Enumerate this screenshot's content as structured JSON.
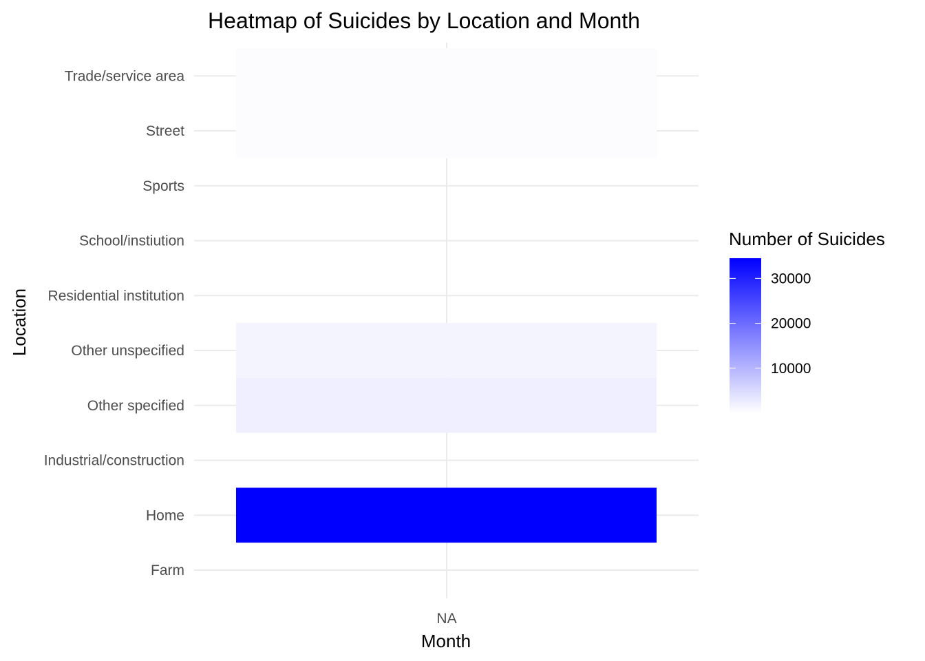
{
  "chart_data": {
    "type": "heatmap",
    "title": "Heatmap of Suicides by Location and Month",
    "xlabel": "Month",
    "ylabel": "Location",
    "x_categories": [
      "NA"
    ],
    "y_categories": [
      "Farm",
      "Home",
      "Industrial/construction",
      "Other specified",
      "Other unspecified",
      "Residential institution",
      "School/instiution",
      "Sports",
      "Street",
      "Trade/service area"
    ],
    "cells": [
      {
        "x": "NA",
        "y": "Home",
        "value": 34500
      },
      {
        "x": "NA",
        "y": "Other specified",
        "value": 2200
      },
      {
        "x": "NA",
        "y": "Other unspecified",
        "value": 1500
      },
      {
        "x": "NA",
        "y": "Street",
        "value": 450
      },
      {
        "x": "NA",
        "y": "Trade/service area",
        "value": 350
      }
    ],
    "color_scale": {
      "low": "#ffffff",
      "high": "#0000ff",
      "min": 0,
      "max": 34500
    },
    "legend": {
      "title": "Number of Suicides",
      "ticks": [
        10000,
        20000,
        30000
      ],
      "tick_labels": [
        "10000",
        "20000",
        "30000"
      ],
      "placement": "right"
    },
    "grid": true
  }
}
